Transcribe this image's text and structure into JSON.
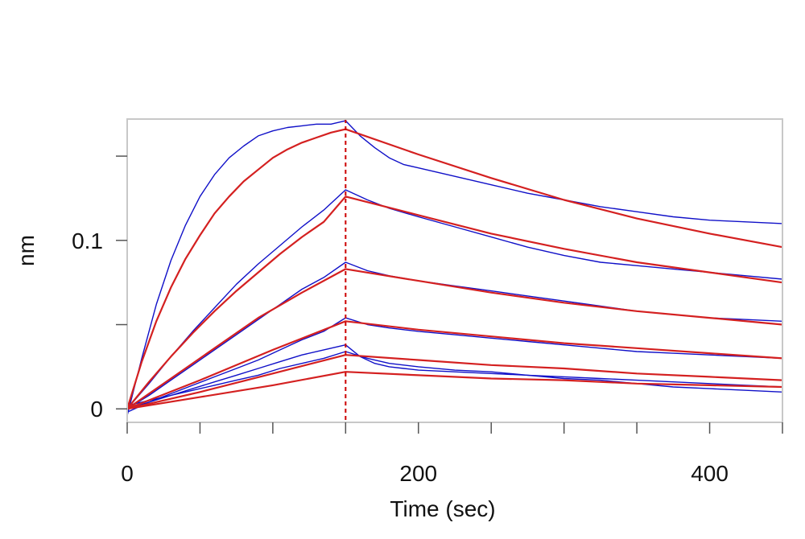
{
  "chart_data": {
    "type": "line",
    "title": "",
    "xlabel": "Time (sec)",
    "ylabel": "nm",
    "xlim": [
      0,
      450
    ],
    "ylim": [
      -0.008,
      0.172
    ],
    "x_ticks": [
      0,
      50,
      100,
      150,
      200,
      250,
      300,
      350,
      400,
      450
    ],
    "x_tick_labels": [
      {
        "value": 0,
        "label": "0"
      },
      {
        "value": 200,
        "label": "200"
      },
      {
        "value": 400,
        "label": "400"
      }
    ],
    "y_ticks": [
      0,
      0.05,
      0.1,
      0.15
    ],
    "y_tick_labels": [
      {
        "value": 0,
        "label": "0"
      },
      {
        "value": 0.1,
        "label": "0.1"
      }
    ],
    "grid": false,
    "legend": "none",
    "association_end_x": 150,
    "marker_line_color": "#cc0000",
    "measured_color": "#1010c8",
    "fit_color": "#d42020",
    "series": [
      {
        "role": "measured",
        "x": [
          0,
          10,
          20,
          30,
          40,
          50,
          60,
          70,
          80,
          90,
          100,
          110,
          120,
          130,
          140,
          150,
          160,
          170,
          180,
          190,
          200,
          225,
          250,
          275,
          300,
          325,
          350,
          375,
          400,
          425,
          450
        ],
        "y": [
          -0.004,
          0.03,
          0.062,
          0.088,
          0.109,
          0.126,
          0.139,
          0.149,
          0.156,
          0.162,
          0.165,
          0.167,
          0.168,
          0.169,
          0.169,
          0.171,
          0.162,
          0.155,
          0.149,
          0.145,
          0.143,
          0.138,
          0.133,
          0.128,
          0.124,
          0.12,
          0.117,
          0.114,
          0.112,
          0.111,
          0.11
        ]
      },
      {
        "role": "fit",
        "x": [
          0,
          10,
          20,
          30,
          40,
          50,
          60,
          70,
          80,
          90,
          100,
          110,
          120,
          130,
          140,
          150,
          200,
          250,
          300,
          350,
          400,
          450
        ],
        "y": [
          0,
          0.028,
          0.052,
          0.072,
          0.089,
          0.103,
          0.116,
          0.126,
          0.135,
          0.142,
          0.149,
          0.154,
          0.158,
          0.161,
          0.164,
          0.166,
          0.151,
          0.137,
          0.124,
          0.113,
          0.104,
          0.096
        ]
      },
      {
        "role": "measured",
        "x": [
          0,
          15,
          30,
          45,
          60,
          75,
          90,
          105,
          120,
          135,
          150,
          165,
          180,
          200,
          225,
          250,
          275,
          300,
          325,
          350,
          375,
          400,
          425,
          450
        ],
        "y": [
          0,
          0.015,
          0.031,
          0.046,
          0.06,
          0.074,
          0.086,
          0.097,
          0.108,
          0.118,
          0.13,
          0.124,
          0.119,
          0.114,
          0.108,
          0.102,
          0.096,
          0.091,
          0.087,
          0.085,
          0.083,
          0.081,
          0.079,
          0.077
        ]
      },
      {
        "role": "fit",
        "x": [
          0,
          15,
          30,
          45,
          60,
          75,
          90,
          105,
          120,
          135,
          150,
          200,
          250,
          300,
          350,
          400,
          450
        ],
        "y": [
          0,
          0.016,
          0.031,
          0.045,
          0.058,
          0.07,
          0.081,
          0.092,
          0.102,
          0.111,
          0.126,
          0.115,
          0.104,
          0.095,
          0.087,
          0.081,
          0.075
        ]
      },
      {
        "role": "measured",
        "x": [
          0,
          15,
          30,
          45,
          60,
          75,
          90,
          105,
          120,
          135,
          150,
          165,
          180,
          200,
          225,
          250,
          275,
          300,
          325,
          350,
          375,
          400,
          425,
          450
        ],
        "y": [
          0,
          0.008,
          0.017,
          0.026,
          0.035,
          0.044,
          0.053,
          0.062,
          0.071,
          0.078,
          0.087,
          0.082,
          0.079,
          0.076,
          0.073,
          0.07,
          0.067,
          0.064,
          0.061,
          0.058,
          0.056,
          0.054,
          0.053,
          0.052
        ]
      },
      {
        "role": "fit",
        "x": [
          0,
          30,
          60,
          90,
          120,
          150,
          200,
          250,
          300,
          350,
          400,
          450
        ],
        "y": [
          0,
          0.018,
          0.036,
          0.054,
          0.069,
          0.083,
          0.076,
          0.069,
          0.063,
          0.058,
          0.054,
          0.05
        ]
      },
      {
        "role": "measured",
        "x": [
          0,
          15,
          30,
          45,
          60,
          75,
          90,
          105,
          120,
          135,
          150,
          165,
          180,
          200,
          225,
          250,
          275,
          300,
          325,
          350,
          375,
          400,
          425,
          450
        ],
        "y": [
          -0.002,
          0.004,
          0.009,
          0.014,
          0.019,
          0.024,
          0.029,
          0.035,
          0.041,
          0.046,
          0.054,
          0.05,
          0.048,
          0.046,
          0.044,
          0.042,
          0.04,
          0.038,
          0.036,
          0.034,
          0.033,
          0.032,
          0.031,
          0.03
        ]
      },
      {
        "role": "fit",
        "x": [
          0,
          50,
          100,
          150,
          200,
          250,
          300,
          350,
          400,
          450
        ],
        "y": [
          0,
          0.017,
          0.035,
          0.052,
          0.047,
          0.043,
          0.039,
          0.036,
          0.033,
          0.03
        ]
      },
      {
        "role": "measured",
        "x": [
          0,
          15,
          30,
          45,
          60,
          75,
          90,
          105,
          120,
          135,
          150,
          160,
          170,
          180,
          190,
          200,
          225,
          250,
          275,
          300,
          325,
          350,
          375,
          400,
          425,
          450
        ],
        "y": [
          0,
          0.004,
          0.008,
          0.012,
          0.016,
          0.02,
          0.024,
          0.028,
          0.032,
          0.035,
          0.038,
          0.031,
          0.027,
          0.025,
          0.024,
          0.023,
          0.022,
          0.021,
          0.02,
          0.019,
          0.018,
          0.017,
          0.016,
          0.015,
          0.014,
          0.013
        ]
      },
      {
        "role": "measured",
        "x": [
          0,
          15,
          30,
          45,
          60,
          75,
          90,
          105,
          120,
          135,
          150,
          165,
          180,
          200,
          225,
          250,
          275,
          300,
          325,
          350,
          375,
          400,
          425,
          450
        ],
        "y": [
          0.002,
          0.005,
          0.008,
          0.011,
          0.014,
          0.017,
          0.02,
          0.024,
          0.027,
          0.03,
          0.034,
          0.03,
          0.027,
          0.025,
          0.023,
          0.022,
          0.02,
          0.018,
          0.017,
          0.015,
          0.013,
          0.012,
          0.011,
          0.01
        ]
      },
      {
        "role": "fit",
        "x": [
          0,
          50,
          100,
          150,
          200,
          250,
          300,
          350,
          400,
          450
        ],
        "y": [
          0,
          0.01,
          0.021,
          0.032,
          0.029,
          0.026,
          0.024,
          0.021,
          0.019,
          0.017
        ]
      },
      {
        "role": "fit",
        "x": [
          0,
          50,
          100,
          150,
          200,
          250,
          300,
          350,
          400,
          450
        ],
        "y": [
          0,
          0.007,
          0.014,
          0.022,
          0.02,
          0.018,
          0.017,
          0.015,
          0.014,
          0.013
        ]
      }
    ]
  }
}
